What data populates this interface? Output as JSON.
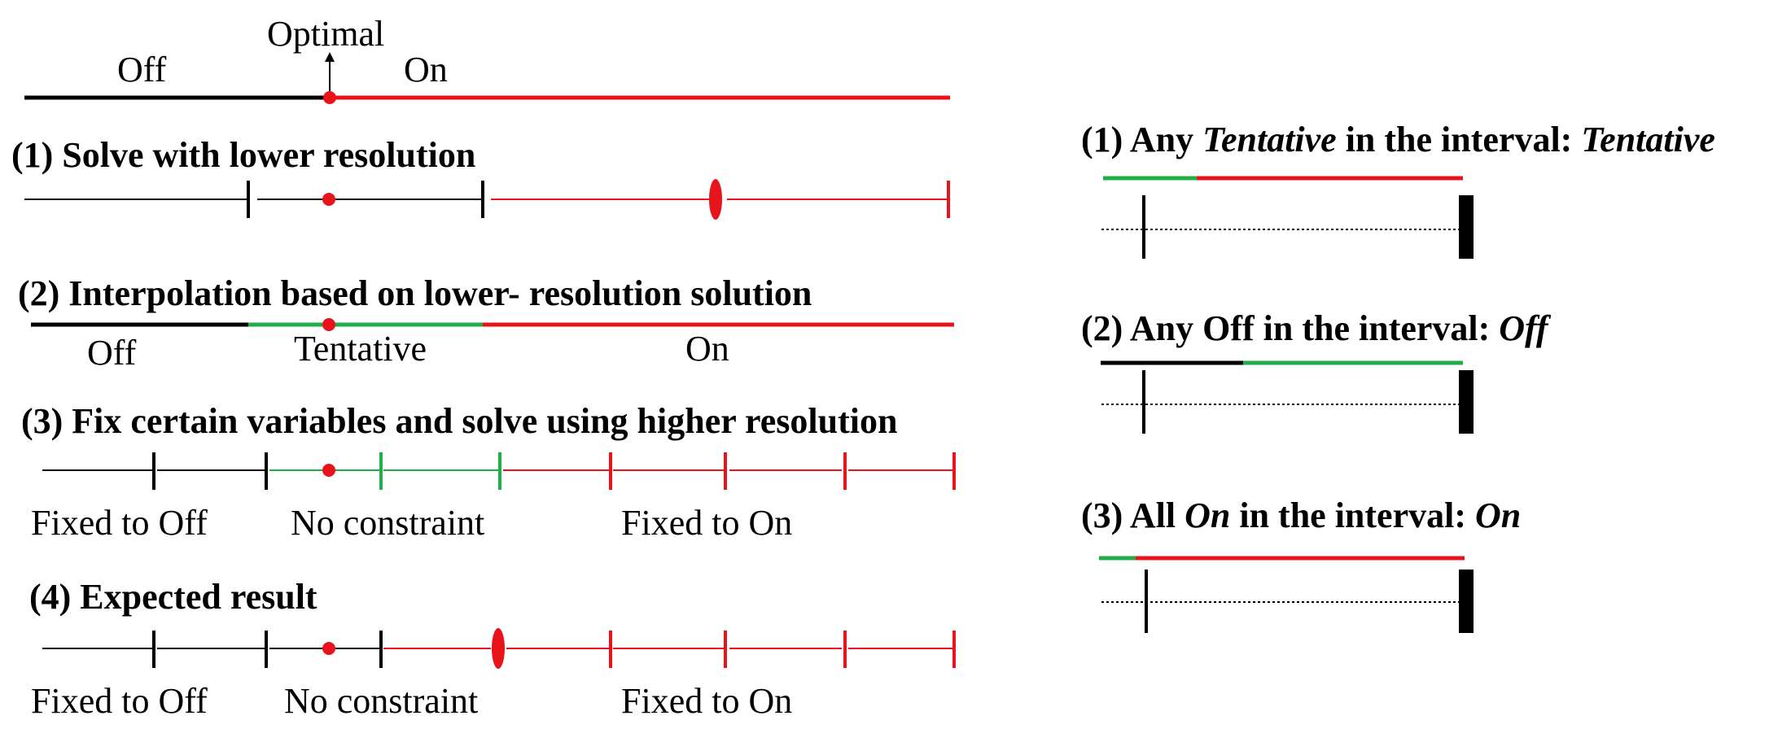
{
  "colors": {
    "off": "#000000",
    "on": "#e8141c",
    "tentative": "#1fae48"
  },
  "top": {
    "optimal": "Optimal",
    "off": "Off",
    "on": "On"
  },
  "step1": {
    "title": "(1) Solve with lower resolution"
  },
  "step2": {
    "title": "(2) Interpolation based on lower- resolution solution",
    "off": "Off",
    "tentative": "Tentative",
    "on": "On"
  },
  "step3": {
    "title": "(3) Fix certain variables and solve using higher resolution",
    "fixed_off": "Fixed to Off",
    "no_constraint": "No constraint",
    "fixed_on": "Fixed to On"
  },
  "step4": {
    "title": "(4) Expected result",
    "fixed_off": "Fixed to Off",
    "no_constraint": "No constraint",
    "fixed_on": "Fixed to On"
  },
  "rules": [
    {
      "prefix": "(1) Any ",
      "em": "Tentative",
      "mid": " in the interval: ",
      "result": "Tentative"
    },
    {
      "prefix": "(2) Any Off in the interval: ",
      "em": "",
      "mid": "",
      "result": "Off"
    },
    {
      "prefix": "(3) All ",
      "em": "On",
      "mid": " in the interval: ",
      "result": "On"
    }
  ]
}
